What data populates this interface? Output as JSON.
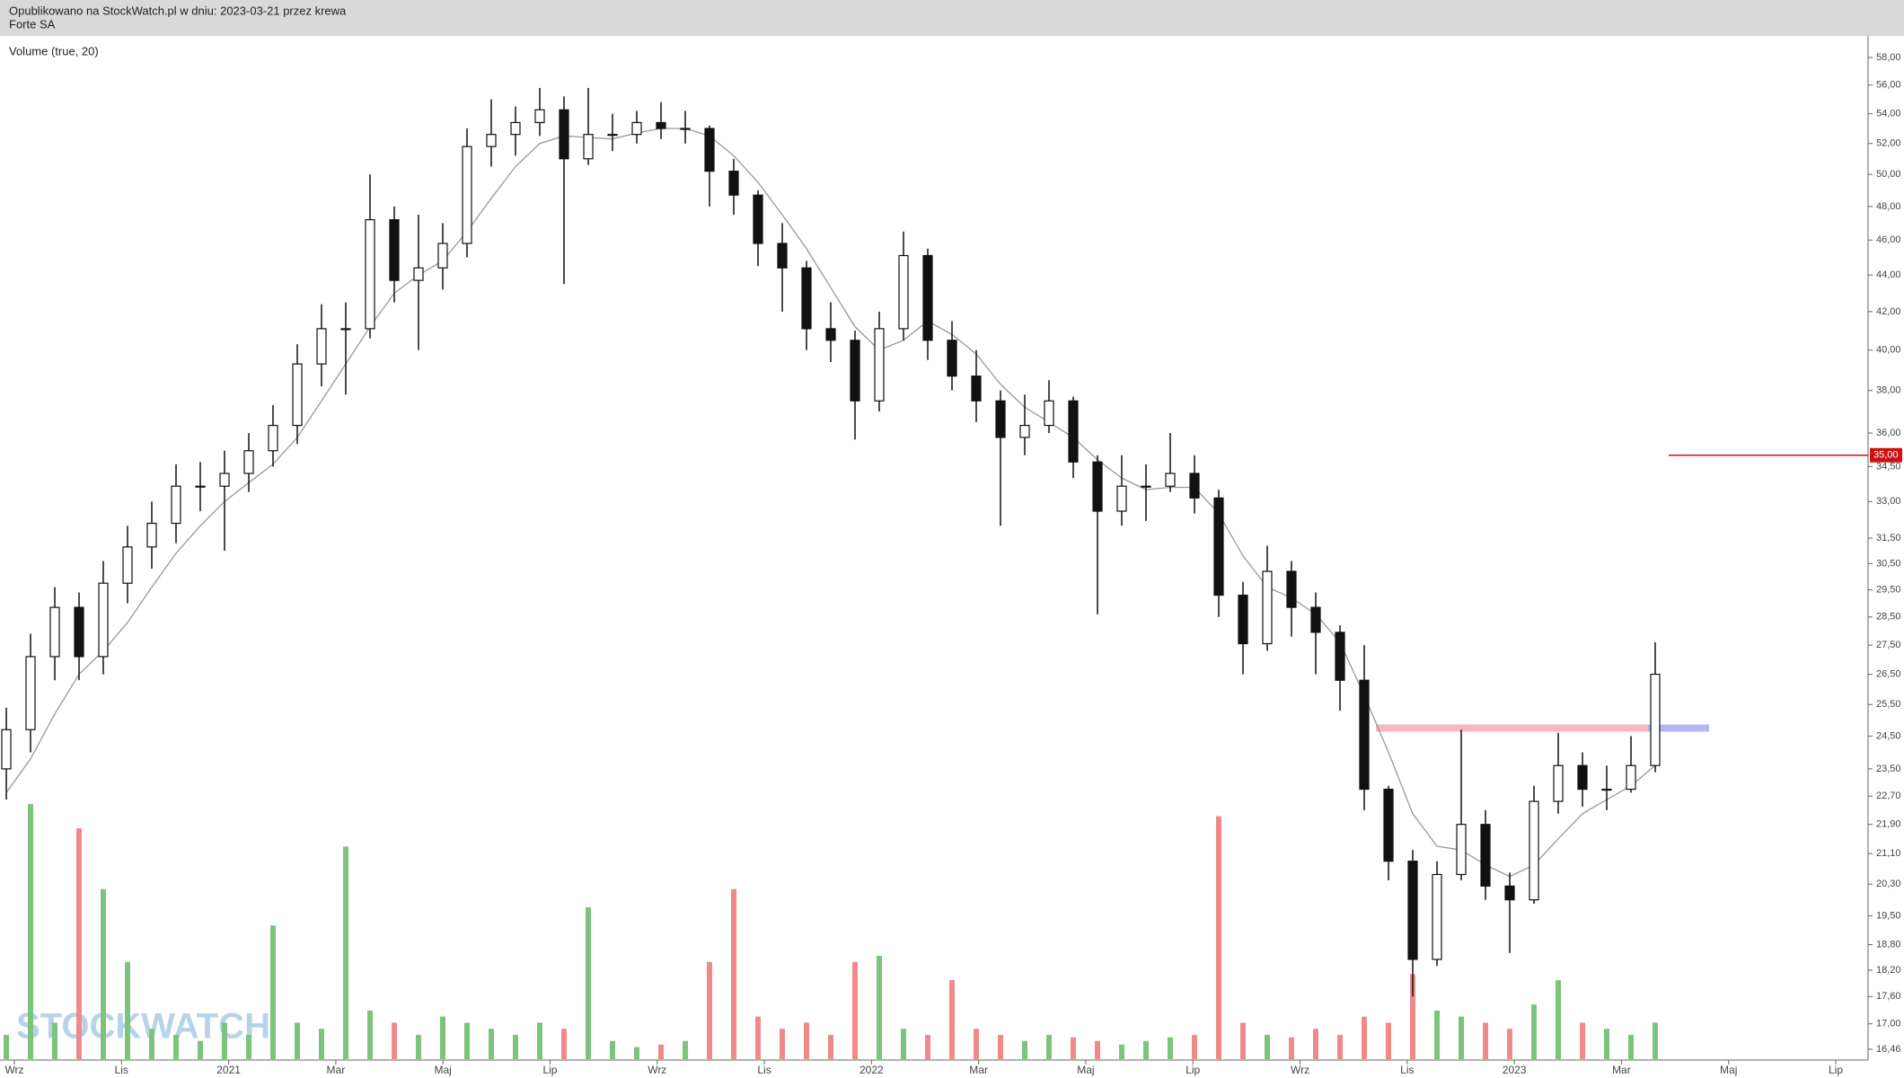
{
  "chart_data": {
    "type": "candlestick",
    "header_note": "Opublikowano na StockWatch.pl w dniu: 2023-03-21 przez krewa",
    "title": "Forte SA",
    "indicator_label": "Volume (true, 20)",
    "watermark": "STOCKWATCH",
    "log_scale": true,
    "ylim": [
      16.46,
      58
    ],
    "yticks": [
      {
        "value": 58,
        "label": "58,00"
      },
      {
        "value": 56,
        "label": "56,00"
      },
      {
        "value": 54,
        "label": "54,00"
      },
      {
        "value": 52,
        "label": "52,00"
      },
      {
        "value": 50,
        "label": "50,00"
      },
      {
        "value": 48,
        "label": "48,00"
      },
      {
        "value": 46,
        "label": "46,00"
      },
      {
        "value": 44,
        "label": "44,00"
      },
      {
        "value": 42,
        "label": "42,00"
      },
      {
        "value": 40,
        "label": "40,00"
      },
      {
        "value": 38,
        "label": "38,00"
      },
      {
        "value": 36,
        "label": "36,00"
      },
      {
        "value": 34.5,
        "label": "34,50"
      },
      {
        "value": 33,
        "label": "33,00"
      },
      {
        "value": 31.5,
        "label": "31,50"
      },
      {
        "value": 30.5,
        "label": "30,50"
      },
      {
        "value": 29.5,
        "label": "29,50"
      },
      {
        "value": 28.5,
        "label": "28,50"
      },
      {
        "value": 27.5,
        "label": "27,50"
      },
      {
        "value": 26.5,
        "label": "26,50"
      },
      {
        "value": 25.5,
        "label": "25,50"
      },
      {
        "value": 24.5,
        "label": "24,50"
      },
      {
        "value": 23.5,
        "label": "23,50"
      },
      {
        "value": 22.7,
        "label": "22,70"
      },
      {
        "value": 21.9,
        "label": "21,90"
      },
      {
        "value": 21.1,
        "label": "21,10"
      },
      {
        "value": 20.3,
        "label": "20,30"
      },
      {
        "value": 19.5,
        "label": "19,50"
      },
      {
        "value": 18.8,
        "label": "18,80"
      },
      {
        "value": 18.2,
        "label": "18,20"
      },
      {
        "value": 17.6,
        "label": "17,60"
      },
      {
        "value": 17,
        "label": "17,00"
      },
      {
        "value": 16.46,
        "label": "16,46"
      }
    ],
    "xtick_labels": [
      "Wrz",
      "Lis",
      "2021",
      "Mar",
      "Maj",
      "Lip",
      "Wrz",
      "Lis",
      "2022",
      "Mar",
      "Maj",
      "Lip",
      "Wrz",
      "Lis",
      "2023",
      "Mar",
      "Maj",
      "Lip"
    ],
    "open": [
      23.5,
      24.7,
      27.1,
      28.85,
      27.1,
      29.75,
      31.15,
      32.1,
      33.65,
      33.65,
      34.2,
      35.2,
      36.35,
      39.3,
      41.1,
      41.1,
      47.2,
      43.7,
      44.4,
      45.8,
      51.8,
      52.6,
      53.4,
      54.27,
      51.0,
      52.6,
      52.6,
      53.4,
      53.0,
      53.0,
      50.2,
      48.7,
      45.8,
      44.4,
      41.1,
      40.5,
      37.5,
      41.1,
      45.1,
      40.5,
      38.7,
      37.5,
      35.8,
      36.35,
      37.5,
      34.7,
      32.6,
      33.65,
      33.65,
      34.2,
      33.15,
      29.3,
      27.55,
      30.2,
      28.85,
      27.95,
      26.3,
      22.9,
      20.9,
      18.45,
      20.55,
      21.9,
      20.25,
      19.9,
      22.55,
      23.6,
      22.9,
      22.9,
      23.6
    ],
    "high": [
      25.4,
      27.9,
      29.6,
      29.4,
      30.6,
      32.0,
      33.0,
      34.6,
      34.7,
      35.2,
      36.0,
      37.3,
      40.3,
      42.4,
      42.5,
      50.0,
      48.0,
      47.5,
      47.0,
      53.0,
      55.0,
      54.5,
      55.8,
      55.2,
      55.8,
      54.0,
      54.2,
      54.8,
      54.2,
      53.2,
      51.0,
      49.0,
      47.0,
      44.8,
      42.5,
      41.0,
      42.0,
      46.5,
      45.5,
      41.5,
      40.0,
      38.0,
      37.8,
      38.5,
      37.7,
      35.0,
      35.0,
      34.6,
      36.0,
      35.0,
      33.5,
      29.8,
      31.2,
      30.6,
      29.4,
      28.2,
      27.5,
      23.0,
      21.2,
      20.9,
      24.7,
      22.3,
      20.6,
      23.0,
      24.6,
      24.0,
      23.6,
      24.5,
      27.6
    ],
    "low": [
      22.6,
      24.0,
      26.3,
      26.3,
      26.5,
      29.0,
      30.3,
      31.3,
      32.6,
      31.0,
      33.4,
      34.5,
      35.5,
      38.2,
      37.8,
      40.6,
      42.5,
      40.0,
      43.2,
      45.0,
      50.5,
      51.2,
      52.5,
      43.5,
      50.6,
      51.5,
      52.0,
      52.3,
      52.0,
      48.0,
      47.5,
      44.5,
      42.0,
      40.0,
      39.4,
      35.7,
      37.0,
      40.5,
      39.5,
      38.0,
      36.5,
      32.0,
      35.0,
      36.0,
      34.0,
      28.6,
      32.0,
      32.2,
      33.4,
      32.5,
      28.5,
      26.5,
      27.3,
      27.8,
      26.5,
      25.3,
      22.3,
      20.4,
      17.6,
      18.3,
      20.4,
      19.9,
      18.6,
      19.8,
      22.2,
      22.4,
      22.3,
      22.8,
      23.4
    ],
    "close": [
      24.7,
      27.1,
      28.85,
      27.1,
      29.75,
      31.15,
      32.1,
      33.65,
      33.65,
      34.2,
      35.2,
      36.35,
      39.3,
      41.1,
      41.1,
      47.2,
      43.7,
      44.4,
      45.8,
      51.8,
      52.6,
      53.4,
      54.27,
      51.0,
      52.6,
      52.6,
      53.4,
      53.0,
      53.0,
      50.2,
      48.7,
      45.8,
      44.4,
      41.1,
      40.5,
      37.5,
      41.1,
      45.1,
      40.5,
      38.7,
      37.5,
      35.8,
      36.35,
      37.5,
      34.7,
      32.6,
      33.65,
      33.65,
      34.2,
      33.15,
      29.3,
      27.55,
      30.2,
      28.85,
      27.95,
      26.3,
      22.9,
      20.9,
      18.45,
      20.55,
      21.9,
      20.25,
      19.9,
      22.55,
      23.6,
      22.9,
      22.9,
      23.6,
      26.5
    ],
    "ma": [
      22.8,
      23.8,
      25.2,
      26.5,
      27.3,
      28.3,
      29.6,
      30.9,
      32.0,
      33.0,
      33.8,
      34.6,
      35.8,
      37.5,
      39.3,
      41.2,
      43.0,
      44.0,
      44.8,
      46.5,
      48.5,
      50.5,
      52.0,
      52.5,
      52.4,
      52.3,
      52.7,
      53.0,
      53.0,
      52.5,
      51.2,
      49.5,
      47.5,
      45.5,
      43.3,
      41.2,
      40.0,
      40.5,
      41.5,
      40.8,
      39.8,
      38.3,
      37.2,
      36.5,
      35.8,
      34.8,
      34.0,
      33.5,
      33.6,
      33.6,
      32.5,
      30.8,
      29.6,
      29.2,
      28.6,
      27.6,
      25.8,
      24.0,
      22.2,
      21.3,
      21.2,
      20.8,
      20.5,
      20.8,
      21.5,
      22.2,
      22.6,
      23.0,
      23.6
    ],
    "volume": [
      20,
      210,
      30,
      190,
      140,
      80,
      25,
      20,
      15,
      30,
      20,
      110,
      30,
      25,
      175,
      40,
      30,
      20,
      35,
      30,
      25,
      20,
      30,
      25,
      125,
      15,
      10,
      12,
      15,
      80,
      140,
      35,
      25,
      30,
      20,
      80,
      85,
      25,
      20,
      65,
      25,
      20,
      15,
      20,
      18,
      15,
      12,
      15,
      18,
      20,
      200,
      30,
      20,
      18,
      25,
      20,
      35,
      30,
      70,
      40,
      35,
      30,
      25,
      45,
      65,
      30,
      25,
      20,
      30
    ],
    "candle_color": "#111111",
    "ma_color": "#999999",
    "volume_up_color": "#7cc47c",
    "volume_down_color": "#f08a8a",
    "levels": [
      {
        "value": 35,
        "label": "35,00",
        "color": "#cc1111"
      }
    ],
    "zones": [
      {
        "value": 24.75,
        "color": "#f7b8bd"
      },
      {
        "value": 24.75,
        "color": "#b4b8f2"
      }
    ]
  }
}
